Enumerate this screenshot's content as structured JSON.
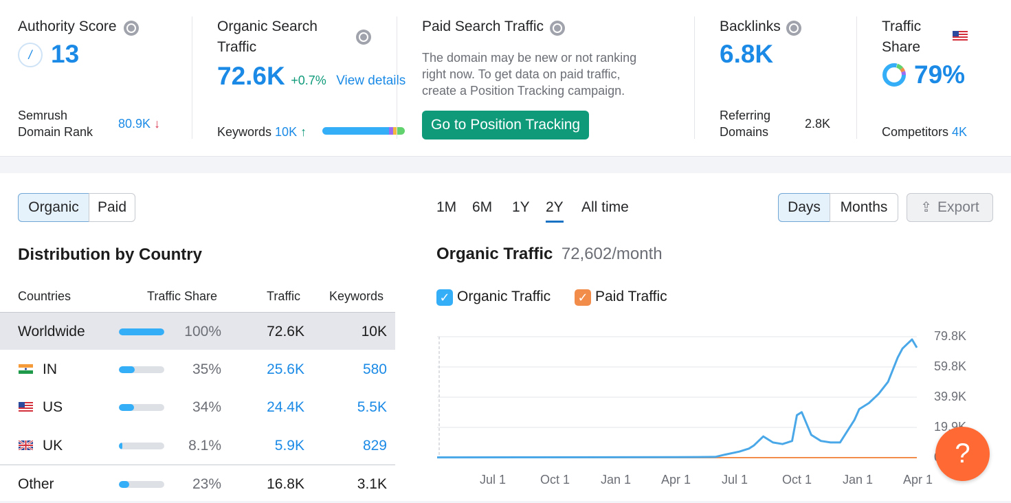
{
  "authority": {
    "title": "Authority Score",
    "score": "13",
    "rank_label_1": "Semrush",
    "rank_label_2": "Domain Rank",
    "rank_value": "80.9K",
    "rank_arrow": "↓"
  },
  "organic": {
    "title_1": "Organic Search",
    "title_2": "Traffic",
    "value": "72.6K",
    "change": "+0.7%",
    "view_details": "View details",
    "keywords_label": "Keywords",
    "keywords_value": "10K",
    "keywords_arrow": "↑"
  },
  "paid": {
    "title": "Paid Search Traffic",
    "desc_1": "The domain may be new or not ranking",
    "desc_2": "right now. To get data on paid traffic,",
    "desc_3": "create a Position Tracking campaign.",
    "button": "Go to Position Tracking"
  },
  "backlinks": {
    "title": "Backlinks",
    "value": "6.8K",
    "ref_label_1": "Referring",
    "ref_label_2": "Domains",
    "ref_value": "2.8K"
  },
  "traffic_share": {
    "title_1": "Traffic",
    "title_2": "Share",
    "value": "79%",
    "competitors_label": "Competitors",
    "competitors_value": "4K",
    "share_fraction": 0.79
  },
  "toggle": {
    "organic": "Organic",
    "paid": "Paid"
  },
  "periods": [
    "1M",
    "6M",
    "1Y",
    "2Y",
    "All time"
  ],
  "selected_period": "2Y",
  "granularity": {
    "days": "Days",
    "months": "Months",
    "export": "Export"
  },
  "distribution": {
    "title": "Distribution by Country",
    "headers": {
      "countries": "Countries",
      "share": "Traffic Share",
      "traffic": "Traffic",
      "keywords": "Keywords"
    },
    "rows": [
      {
        "country": "Worldwide",
        "share": "100%",
        "share_fraction": 1.0,
        "traffic": "72.6K",
        "keywords": "10K"
      },
      {
        "country": "IN",
        "share": "35%",
        "share_fraction": 0.35,
        "traffic": "25.6K",
        "keywords": "580"
      },
      {
        "country": "US",
        "share": "34%",
        "share_fraction": 0.34,
        "traffic": "24.4K",
        "keywords": "5.5K"
      },
      {
        "country": "UK",
        "share": "8.1%",
        "share_fraction": 0.081,
        "traffic": "5.9K",
        "keywords": "829"
      },
      {
        "country": "Other",
        "share": "23%",
        "share_fraction": 0.23,
        "traffic": "16.8K",
        "keywords": "3.1K"
      }
    ]
  },
  "chart_header": {
    "title": "Organic Traffic",
    "value": "72,602/month",
    "legend_organic": "Organic Traffic",
    "legend_paid": "Paid Traffic"
  },
  "help": "?",
  "colors": {
    "accent": "#1a8ae6",
    "green": "#0f9a7a",
    "organic_line": "#4aa8e8",
    "paid_line": "#f28c4a",
    "help": "#ff6a34"
  },
  "chart_data": {
    "type": "line",
    "x_ticks": [
      "Jul 1",
      "Oct 1",
      "Jan 1",
      "Apr 1",
      "Jul 1",
      "Oct 1",
      "Jan 1",
      "Apr 1"
    ],
    "y_ticks": [
      "79.8K",
      "59.8K",
      "39.9K",
      "19.9K",
      "0"
    ],
    "ylim": [
      0,
      79800
    ],
    "grid": true,
    "series": [
      {
        "name": "Organic Traffic",
        "color": "#4aa8e8",
        "x": [
          0,
          0.5,
          0.58,
          0.6,
          0.63,
          0.65,
          0.66,
          0.68,
          0.7,
          0.72,
          0.74,
          0.75,
          0.76,
          0.78,
          0.8,
          0.82,
          0.84,
          0.86,
          0.87,
          0.88,
          0.9,
          0.92,
          0.94,
          0.95,
          0.96,
          0.97,
          0.98,
          0.99,
          1.0
        ],
        "y": [
          200,
          300,
          500,
          2000,
          4000,
          6000,
          8000,
          14000,
          10000,
          9000,
          11000,
          28000,
          30000,
          15000,
          11000,
          10000,
          10000,
          20000,
          25000,
          32000,
          36000,
          42000,
          50000,
          58000,
          66000,
          72000,
          75000,
          78000,
          72602
        ]
      },
      {
        "name": "Paid Traffic",
        "color": "#f28c4a",
        "x": [
          0,
          1.0
        ],
        "y": [
          0,
          0
        ]
      }
    ]
  }
}
